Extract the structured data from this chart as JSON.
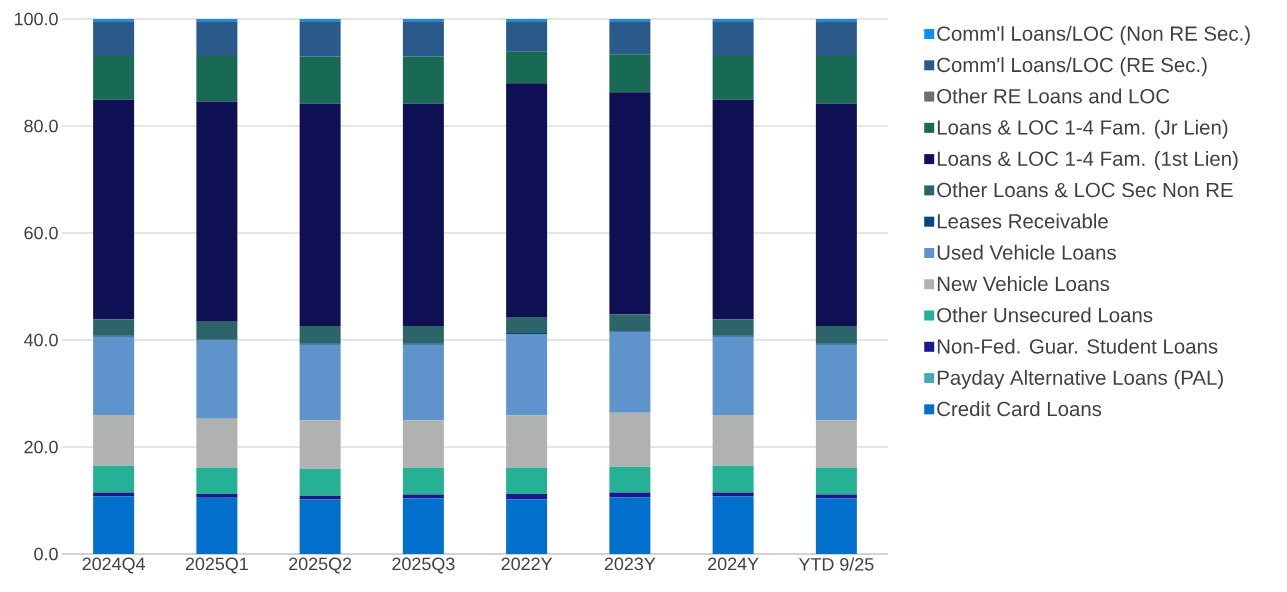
{
  "chart_data": {
    "type": "bar",
    "stacked": true,
    "categories": [
      "2024Q4",
      "2025Q1",
      "2025Q2",
      "2025Q3",
      "2022Y",
      "2023Y",
      "2024Y",
      "YTD 9/25"
    ],
    "series": [
      {
        "name": "Credit Card Loans",
        "color": "#0070cc",
        "values": [
          10.8,
          10.5,
          10.2,
          10.4,
          10.2,
          10.6,
          10.8,
          10.4
        ]
      },
      {
        "name": "Payday Alternative Loans (PAL)",
        "color": "#4aa8b8",
        "values": [
          0,
          0,
          0,
          0,
          0,
          0,
          0,
          0
        ]
      },
      {
        "name": "Non-Fed. Guar. Student Loans",
        "color": "#1a1a8c",
        "values": [
          0.7,
          0.7,
          0.7,
          0.7,
          1.0,
          0.9,
          0.7,
          0.7
        ]
      },
      {
        "name": "Other Unsecured Loans",
        "color": "#26b095",
        "values": [
          5.0,
          4.9,
          5.0,
          5.0,
          4.9,
          4.8,
          5.0,
          5.0
        ]
      },
      {
        "name": "New Vehicle Loans",
        "color": "#b0b2b2",
        "values": [
          9.5,
          9.2,
          9.1,
          8.9,
          9.8,
          10.1,
          9.5,
          8.9
        ]
      },
      {
        "name": "Used Vehicle Loans",
        "color": "#5f93cc",
        "values": [
          14.6,
          14.6,
          14.1,
          14.1,
          15.2,
          15.1,
          14.6,
          14.1
        ]
      },
      {
        "name": "Leases Receivable",
        "color": "#00467f",
        "values": [
          0.2,
          0.2,
          0.2,
          0.2,
          0.2,
          0.1,
          0.2,
          0.2
        ]
      },
      {
        "name": "Other Loans & LOC Sec Non RE",
        "color": "#2d6469",
        "values": [
          3.1,
          3.3,
          3.3,
          3.3,
          3.0,
          3.2,
          3.1,
          3.3
        ]
      },
      {
        "name": "Loans & LOC 1-4 Fam. (1st Lien)",
        "color": "#0e1053",
        "values": [
          41.0,
          41.2,
          41.6,
          41.6,
          43.7,
          41.5,
          41.0,
          41.6
        ]
      },
      {
        "name": "Loans & LOC 1-4 Fam. (Jr Lien)",
        "color": "#186a55",
        "values": [
          8.2,
          8.5,
          8.8,
          8.8,
          5.9,
          7.1,
          8.2,
          8.9
        ]
      },
      {
        "name": "Other RE Loans and LOC",
        "color": "#6d6e71",
        "values": [
          0,
          0,
          0,
          0,
          0,
          0,
          0,
          0
        ]
      },
      {
        "name": "Comm'l Loans/LOC (RE Sec.)",
        "color": "#2a5a8a",
        "values": [
          6.5,
          6.5,
          6.6,
          6.6,
          5.7,
          6.2,
          6.5,
          6.5
        ]
      },
      {
        "name": "Comm'l Loans/LOC (Non RE Sec.)",
        "color": "#0d8fef",
        "values": [
          0.4,
          0.4,
          0.4,
          0.4,
          0.4,
          0.4,
          0.4,
          0.4
        ]
      }
    ],
    "ylim": [
      0,
      100
    ],
    "yticks": [
      {
        "value": 0,
        "label": "0.0"
      },
      {
        "value": 20,
        "label": "20.0"
      },
      {
        "value": 40,
        "label": "40.0"
      },
      {
        "value": 60,
        "label": "60.0"
      },
      {
        "value": 80,
        "label": "80.0"
      },
      {
        "value": 100,
        "label": "100.0"
      }
    ],
    "grid": "y",
    "legend": "right"
  }
}
